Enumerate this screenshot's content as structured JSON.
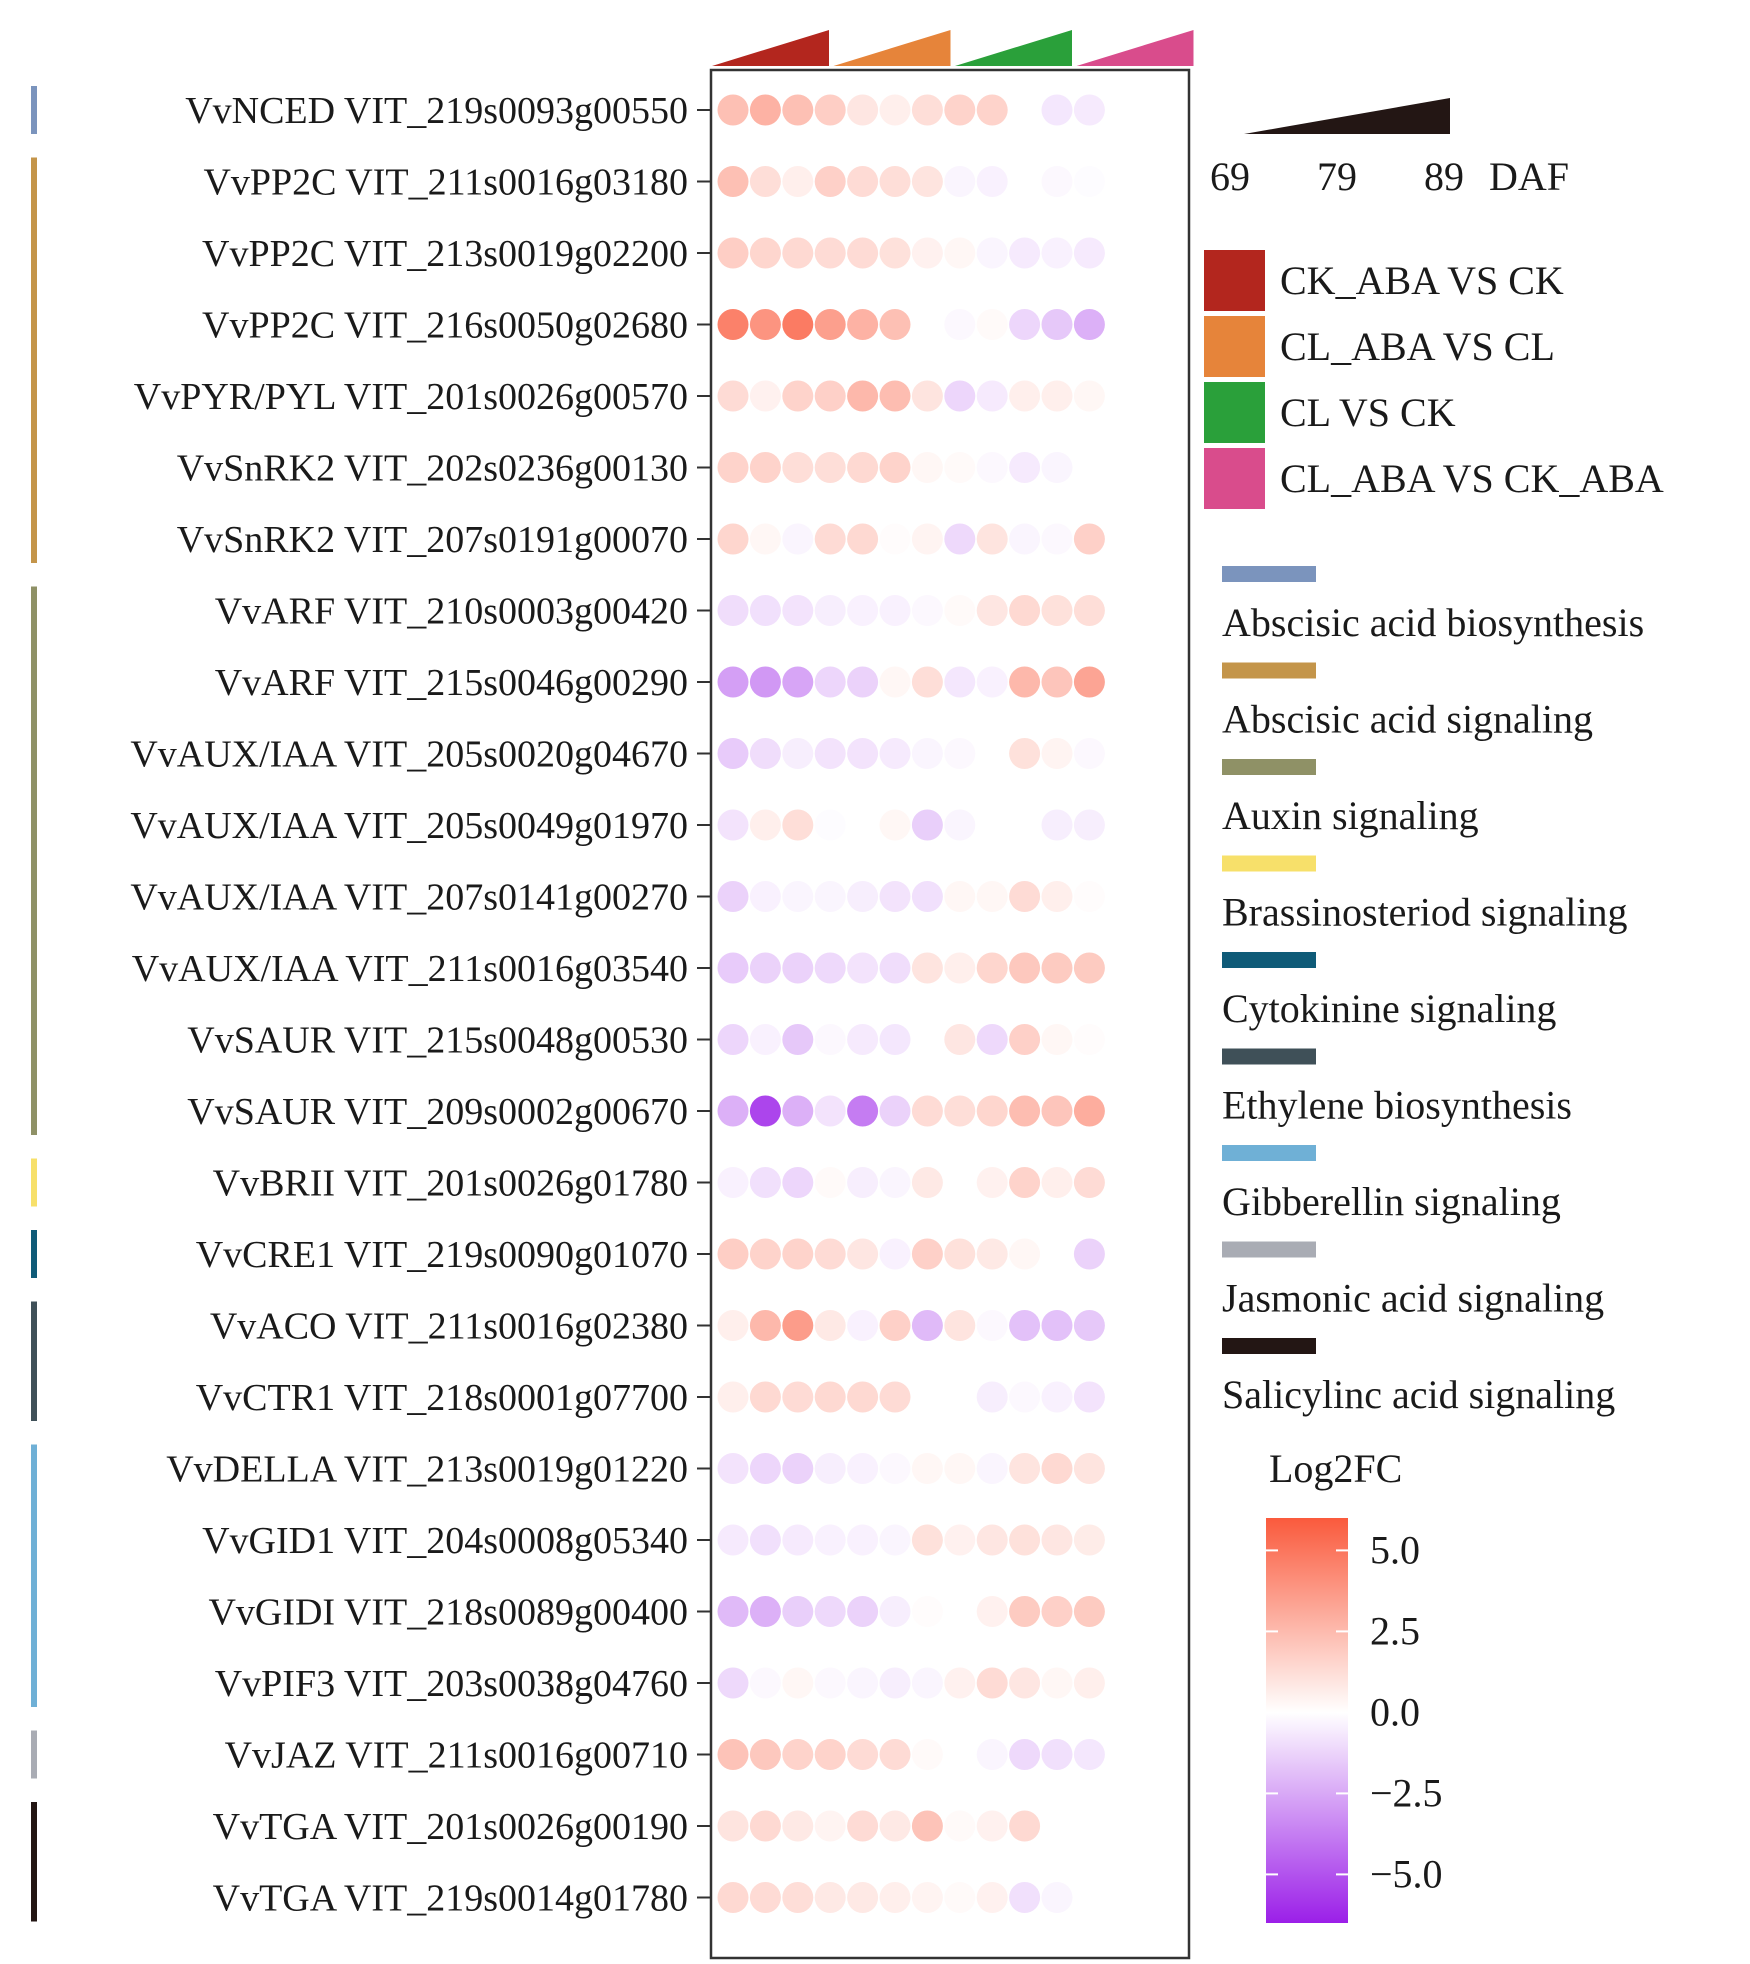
{
  "chart_data": {
    "type": "heatmap",
    "value_label": "Log2FC",
    "color_scale": {
      "min": -6.5,
      "max": 6.0,
      "low_color": "#9b1fe8",
      "mid_color": "#ffffff",
      "high_color": "#fa5a3c",
      "ticks": [
        "5.0",
        "2.5",
        "0.0",
        "−2.5",
        "−5.0"
      ],
      "tick_values": [
        5.0,
        2.5,
        0.0,
        -2.5,
        -5.0
      ]
    },
    "time_axis": {
      "ticks": [
        "69",
        "79",
        "89"
      ],
      "unit": "DAF",
      "values_per_group": [
        69,
        79,
        89
      ]
    },
    "comparisons": [
      {
        "name": "CK_ABA VS CK",
        "color": "#b3261e"
      },
      {
        "name": "CL_ABA VS CL",
        "color": "#e6843a"
      },
      {
        "name": "CL VS CK",
        "color": "#2aa03a"
      },
      {
        "name": "CL_ABA VS CK_ABA",
        "color": "#d94c8c"
      }
    ],
    "categories": [
      {
        "name": "Abscisic acid biosynthesis",
        "color": "#7b94bd",
        "rows": [
          0,
          0
        ]
      },
      {
        "name": "Abscisic acid signaling",
        "color": "#c4954a",
        "rows": [
          1,
          6
        ]
      },
      {
        "name": "Auxin signaling",
        "color": "#8f9166",
        "rows": [
          7,
          14
        ]
      },
      {
        "name": "Brassinosteriod signaling",
        "color": "#f7e06a",
        "rows": [
          15,
          15
        ]
      },
      {
        "name": "Cytokinine signaling",
        "color": "#0f5b78",
        "rows": [
          16,
          16
        ]
      },
      {
        "name": "Ethylene biosynthesis",
        "color": "#3f5058",
        "rows": [
          17,
          18
        ]
      },
      {
        "name": "Gibberellin signaling",
        "color": "#6fb0d6",
        "rows": [
          19,
          22
        ]
      },
      {
        "name": "Jasmonic acid signaling",
        "color": "#a9acb4",
        "rows": [
          23,
          23
        ]
      },
      {
        "name": "Salicylinc acid signaling",
        "color": "#231614",
        "rows": [
          24,
          25
        ]
      }
    ],
    "genes": [
      "VvNCED VIT_219s0093g00550",
      "VvPP2C VIT_211s0016g03180",
      "VvPP2C VIT_213s0019g02200",
      "VvPP2C VIT_216s0050g02680",
      "VvPYR/PYL VIT_201s0026g00570",
      "VvSnRK2 VIT_202s0236g00130",
      "VvSnRK2 VIT_207s0191g00070",
      "VvARF VIT_210s0003g00420",
      "VvARF VIT_215s0046g00290",
      "VvAUX/IAA VIT_205s0020g04670",
      "VvAUX/IAA VIT_205s0049g01970",
      "VvAUX/IAA VIT_207s0141g00270",
      "VvAUX/IAA VIT_211s0016g03540",
      "VvSAUR VIT_215s0048g00530",
      "VvSAUR VIT_209s0002g00670",
      "VvBRII VIT_201s0026g01780",
      "VvCRE1 VIT_219s0090g01070",
      "VvACO VIT_211s0016g02380",
      "VvCTR1 VIT_218s0001g07700",
      "VvDELLA VIT_213s0019g01220",
      "VvGID1 VIT_204s0008g05340",
      "VvGIDI VIT_218s0089g00400",
      "VvPIF3 VIT_203s0038g04760",
      "VvJAZ VIT_211s0016g00710",
      "VvTGA VIT_201s0026g00190",
      "VvTGA VIT_219s0014g01780"
    ],
    "values": [
      [
        2.3,
        2.8,
        2.3,
        1.8,
        0.9,
        0.6,
        1.2,
        1.6,
        1.6,
        0,
        -0.7,
        -0.6
      ],
      [
        2.3,
        1.2,
        0.6,
        1.7,
        1.3,
        1.2,
        1.0,
        -0.3,
        -0.4,
        0,
        -0.2,
        -0.1
      ],
      [
        1.8,
        1.5,
        1.4,
        1.3,
        1.3,
        1.1,
        0.5,
        0.3,
        -0.3,
        -0.6,
        -0.4,
        -0.6
      ],
      [
        4.6,
        3.9,
        4.8,
        3.5,
        2.8,
        2.3,
        0,
        -0.2,
        0.2,
        -1.2,
        -1.6,
        -2.3
      ],
      [
        1.3,
        0.5,
        1.6,
        1.7,
        2.6,
        2.4,
        1.0,
        -1.2,
        -0.6,
        0.6,
        0.6,
        0.3
      ],
      [
        1.6,
        1.6,
        1.2,
        1.2,
        1.4,
        1.6,
        0.3,
        0.2,
        -0.2,
        -0.6,
        -0.3,
        0
      ],
      [
        1.5,
        0.3,
        -0.3,
        1.3,
        1.4,
        0.1,
        0.4,
        -1.1,
        1.0,
        -0.3,
        -0.2,
        1.7
      ],
      [
        -1.0,
        -0.9,
        -0.8,
        -0.5,
        -0.4,
        -0.4,
        -0.2,
        0.2,
        0.9,
        1.4,
        1.1,
        1.2
      ],
      [
        -2.8,
        -3.0,
        -2.6,
        -1.2,
        -1.3,
        0.3,
        1.2,
        -0.7,
        -0.4,
        2.6,
        2.1,
        3.3
      ],
      [
        -1.5,
        -1.0,
        -0.5,
        -0.8,
        -0.8,
        -0.6,
        -0.3,
        -0.2,
        0,
        1.1,
        0.4,
        -0.2
      ],
      [
        -0.8,
        0.6,
        1.2,
        -0.1,
        0,
        0.3,
        -1.4,
        -0.3,
        0,
        0,
        -0.5,
        -0.5
      ],
      [
        -1.3,
        -0.4,
        -0.3,
        -0.3,
        -0.5,
        -0.8,
        -0.9,
        0.3,
        0.3,
        1.3,
        0.6,
        0.1
      ],
      [
        -1.5,
        -1.3,
        -1.3,
        -1.1,
        -0.8,
        -1.0,
        1.0,
        0.6,
        1.5,
        2.0,
        1.9,
        1.9
      ],
      [
        -1.2,
        -0.4,
        -1.6,
        -0.2,
        -0.6,
        -0.7,
        0,
        0.9,
        -1.1,
        1.7,
        0.3,
        0.1
      ],
      [
        -2.3,
        -5.4,
        -2.3,
        -0.8,
        -3.8,
        -1.3,
        1.3,
        1.2,
        1.5,
        2.4,
        2.1,
        3.0
      ],
      [
        -0.4,
        -0.9,
        -1.2,
        0.2,
        -0.5,
        -0.3,
        0.8,
        0,
        0.5,
        1.6,
        0.6,
        1.3
      ],
      [
        1.8,
        1.6,
        1.6,
        1.3,
        0.9,
        -0.4,
        1.7,
        1.1,
        0.8,
        0.3,
        0,
        -1.3
      ],
      [
        0.6,
        2.6,
        3.6,
        0.8,
        -0.4,
        1.7,
        -2.0,
        1.0,
        -0.2,
        -1.8,
        -1.8,
        -1.6
      ],
      [
        0.6,
        1.4,
        1.3,
        1.4,
        1.4,
        1.3,
        0,
        0,
        -0.5,
        -0.2,
        -0.4,
        -0.8
      ],
      [
        -0.8,
        -1.2,
        -1.3,
        -0.5,
        -0.4,
        -0.2,
        0.3,
        0.3,
        -0.3,
        1.0,
        1.4,
        1.0
      ],
      [
        -0.6,
        -0.9,
        -0.6,
        -0.4,
        -0.4,
        -0.3,
        1.1,
        0.5,
        0.9,
        1.1,
        0.9,
        0.7
      ],
      [
        -2.0,
        -2.3,
        -1.4,
        -1.1,
        -1.3,
        -0.5,
        0.1,
        0,
        0.5,
        1.9,
        1.7,
        1.9
      ],
      [
        -1.1,
        -0.2,
        0.3,
        -0.2,
        -0.3,
        -0.5,
        -0.3,
        0.5,
        1.3,
        0.9,
        0.3,
        0.6
      ],
      [
        2.2,
        2.0,
        1.6,
        1.6,
        1.3,
        1.3,
        0.2,
        0,
        -0.3,
        -1.1,
        -0.9,
        -0.7
      ],
      [
        1.0,
        1.4,
        0.8,
        0.4,
        1.3,
        0.8,
        2.2,
        0.2,
        0.5,
        1.4,
        0,
        0
      ],
      [
        1.4,
        1.3,
        1.2,
        0.8,
        0.8,
        0.6,
        0.4,
        0.2,
        0.5,
        -0.9,
        -0.3,
        0
      ]
    ]
  }
}
